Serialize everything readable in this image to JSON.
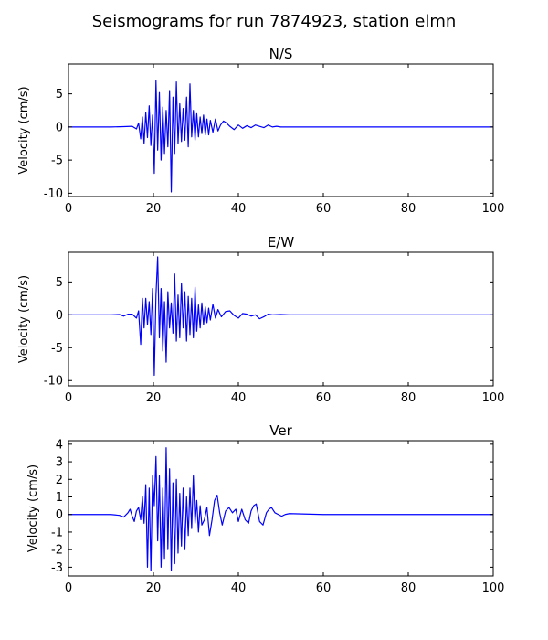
{
  "figure": {
    "title": "Seismograms for run 7874923, station elmn"
  },
  "colors": {
    "trace": "#0000ff",
    "axes": "#000000",
    "background": "#ffffff"
  },
  "chart_data": [
    {
      "type": "line",
      "title": "N/S",
      "xlabel": "",
      "ylabel": "Velocity (cm/s)",
      "xlim": [
        0,
        100
      ],
      "ylim": [
        -10.5,
        9.5
      ],
      "xticks": [
        0,
        20,
        40,
        60,
        80,
        100
      ],
      "yticks": [
        -10,
        -5,
        0,
        5
      ],
      "grid": false,
      "series": [
        {
          "color": "#0000ff",
          "points": [
            [
              0,
              0
            ],
            [
              10,
              0
            ],
            [
              13,
              0.05
            ],
            [
              15,
              0.1
            ],
            [
              16,
              -0.3
            ],
            [
              16.5,
              0.6
            ],
            [
              17,
              -1.8
            ],
            [
              17.4,
              1.5
            ],
            [
              17.8,
              -2.5
            ],
            [
              18.2,
              2.2
            ],
            [
              18.6,
              -1.6
            ],
            [
              19,
              3.2
            ],
            [
              19.4,
              -2.8
            ],
            [
              19.8,
              1.8
            ],
            [
              20.2,
              -7.0
            ],
            [
              20.6,
              7.0
            ],
            [
              21,
              -3.5
            ],
            [
              21.4,
              5.2
            ],
            [
              21.8,
              -5.0
            ],
            [
              22.2,
              3.0
            ],
            [
              22.6,
              -4.0
            ],
            [
              23,
              2.5
            ],
            [
              23.4,
              -3.0
            ],
            [
              23.8,
              5.5
            ],
            [
              24.2,
              -9.8
            ],
            [
              24.6,
              4.5
            ],
            [
              25,
              -4.0
            ],
            [
              25.4,
              6.8
            ],
            [
              25.8,
              -2.5
            ],
            [
              26.2,
              3.5
            ],
            [
              26.6,
              -2.2
            ],
            [
              27,
              2.8
            ],
            [
              27.4,
              -2.0
            ],
            [
              27.8,
              4.5
            ],
            [
              28.2,
              -3.0
            ],
            [
              28.6,
              6.5
            ],
            [
              29,
              -1.5
            ],
            [
              29.4,
              2.5
            ],
            [
              29.8,
              -2.0
            ],
            [
              30.2,
              2.0
            ],
            [
              30.6,
              -1.5
            ],
            [
              31,
              1.5
            ],
            [
              31.4,
              -1.0
            ],
            [
              31.8,
              1.8
            ],
            [
              32.2,
              -1.2
            ],
            [
              32.6,
              1.2
            ],
            [
              33,
              -1.2
            ],
            [
              33.4,
              1.0
            ],
            [
              34,
              -0.8
            ],
            [
              34.6,
              1.2
            ],
            [
              35.2,
              -0.6
            ],
            [
              35.8,
              0.3
            ],
            [
              36.5,
              0.9
            ],
            [
              37.2,
              0.6
            ],
            [
              38,
              0.1
            ],
            [
              39,
              -0.4
            ],
            [
              40,
              0.3
            ],
            [
              41,
              -0.2
            ],
            [
              42,
              0.2
            ],
            [
              43,
              -0.1
            ],
            [
              44,
              0.3
            ],
            [
              45,
              0.1
            ],
            [
              46,
              -0.1
            ],
            [
              47,
              0.3
            ],
            [
              48,
              0
            ],
            [
              49,
              0.1
            ],
            [
              50,
              0
            ],
            [
              52,
              0
            ],
            [
              60,
              0
            ],
            [
              80,
              0
            ],
            [
              100,
              0
            ]
          ]
        }
      ]
    },
    {
      "type": "line",
      "title": "E/W",
      "xlabel": "",
      "ylabel": "Velocity (cm/s)",
      "xlim": [
        0,
        100
      ],
      "ylim": [
        -10.8,
        9.5
      ],
      "xticks": [
        0,
        20,
        40,
        60,
        80,
        100
      ],
      "yticks": [
        -10,
        -5,
        0,
        5
      ],
      "grid": false,
      "series": [
        {
          "color": "#0000ff",
          "points": [
            [
              0,
              0
            ],
            [
              10,
              0
            ],
            [
              12,
              0.05
            ],
            [
              13,
              -0.2
            ],
            [
              14,
              0.1
            ],
            [
              15,
              0.1
            ],
            [
              16,
              -0.5
            ],
            [
              16.5,
              0.6
            ],
            [
              17,
              -4.5
            ],
            [
              17.4,
              2.5
            ],
            [
              17.8,
              -2.0
            ],
            [
              18.2,
              2.5
            ],
            [
              18.6,
              -1.5
            ],
            [
              19,
              2.0
            ],
            [
              19.4,
              -3.0
            ],
            [
              19.8,
              4.0
            ],
            [
              20.2,
              -9.2
            ],
            [
              20.6,
              3.0
            ],
            [
              21,
              8.8
            ],
            [
              21.4,
              -3.5
            ],
            [
              21.8,
              4.0
            ],
            [
              22.2,
              -5.5
            ],
            [
              22.6,
              2.0
            ],
            [
              23,
              -7.2
            ],
            [
              23.4,
              3.5
            ],
            [
              23.8,
              -2.0
            ],
            [
              24.2,
              1.8
            ],
            [
              24.6,
              -2.8
            ],
            [
              25,
              6.2
            ],
            [
              25.4,
              -4.0
            ],
            [
              25.8,
              3.0
            ],
            [
              26.2,
              -3.5
            ],
            [
              26.6,
              4.8
            ],
            [
              27,
              -2.0
            ],
            [
              27.4,
              3.5
            ],
            [
              27.8,
              -4.0
            ],
            [
              28.2,
              2.8
            ],
            [
              28.6,
              -3.0
            ],
            [
              29,
              2.5
            ],
            [
              29.4,
              -3.5
            ],
            [
              29.8,
              4.2
            ],
            [
              30.2,
              -2.5
            ],
            [
              30.6,
              1.5
            ],
            [
              31,
              -2.0
            ],
            [
              31.4,
              1.8
            ],
            [
              31.8,
              -1.5
            ],
            [
              32.2,
              1.2
            ],
            [
              32.6,
              -1.2
            ],
            [
              33,
              1.0
            ],
            [
              33.4,
              -0.8
            ],
            [
              34,
              1.6
            ],
            [
              34.6,
              -0.5
            ],
            [
              35.2,
              0.8
            ],
            [
              36,
              -0.3
            ],
            [
              37,
              0.5
            ],
            [
              38,
              0.6
            ],
            [
              39,
              -0.1
            ],
            [
              40,
              -0.5
            ],
            [
              41,
              0.2
            ],
            [
              42,
              0.1
            ],
            [
              43,
              -0.2
            ],
            [
              44,
              0
            ],
            [
              45,
              -0.6
            ],
            [
              46,
              -0.3
            ],
            [
              47,
              0.1
            ],
            [
              48,
              0
            ],
            [
              50,
              0.05
            ],
            [
              52,
              0
            ],
            [
              60,
              0
            ],
            [
              80,
              0
            ],
            [
              100,
              0
            ]
          ]
        }
      ]
    },
    {
      "type": "line",
      "title": "Ver",
      "xlabel": "",
      "ylabel": "Velocity (cm/s)",
      "xlim": [
        0,
        100
      ],
      "ylim": [
        -3.5,
        4.2
      ],
      "xticks": [
        0,
        20,
        40,
        60,
        80,
        100
      ],
      "yticks": [
        -3,
        -2,
        -1,
        0,
        1,
        2,
        3,
        4
      ],
      "grid": false,
      "series": [
        {
          "color": "#0000ff",
          "points": [
            [
              0,
              0
            ],
            [
              10,
              0
            ],
            [
              12,
              -0.05
            ],
            [
              13,
              -0.15
            ],
            [
              14,
              0.1
            ],
            [
              14.5,
              0.3
            ],
            [
              15,
              -0.1
            ],
            [
              15.5,
              -0.4
            ],
            [
              16,
              0.2
            ],
            [
              16.5,
              0.4
            ],
            [
              17,
              -0.3
            ],
            [
              17.4,
              1.0
            ],
            [
              17.8,
              -0.5
            ],
            [
              18.2,
              1.7
            ],
            [
              18.6,
              -3.0
            ],
            [
              19,
              1.5
            ],
            [
              19.4,
              -3.2
            ],
            [
              19.8,
              2.2
            ],
            [
              20.2,
              0.5
            ],
            [
              20.6,
              3.3
            ],
            [
              21,
              -1.5
            ],
            [
              21.4,
              2.2
            ],
            [
              21.8,
              -3.0
            ],
            [
              22.2,
              1.5
            ],
            [
              22.6,
              -2.5
            ],
            [
              23,
              3.8
            ],
            [
              23.4,
              -2.0
            ],
            [
              23.8,
              2.6
            ],
            [
              24.2,
              -3.2
            ],
            [
              24.6,
              1.8
            ],
            [
              25,
              -2.8
            ],
            [
              25.4,
              2.0
            ],
            [
              25.8,
              -2.2
            ],
            [
              26.2,
              1.2
            ],
            [
              26.6,
              -1.8
            ],
            [
              27,
              1.5
            ],
            [
              27.4,
              -2.0
            ],
            [
              27.8,
              1.0
            ],
            [
              28.2,
              -1.2
            ],
            [
              28.6,
              1.5
            ],
            [
              29,
              -0.8
            ],
            [
              29.4,
              2.2
            ],
            [
              29.8,
              -0.5
            ],
            [
              30.2,
              0.8
            ],
            [
              30.6,
              -1.0
            ],
            [
              31,
              0.5
            ],
            [
              31.4,
              -0.6
            ],
            [
              32,
              -0.3
            ],
            [
              32.6,
              0.4
            ],
            [
              33.2,
              -1.2
            ],
            [
              33.8,
              -0.3
            ],
            [
              34.4,
              0.8
            ],
            [
              35,
              1.1
            ],
            [
              35.6,
              0.1
            ],
            [
              36.2,
              -0.6
            ],
            [
              37,
              0.2
            ],
            [
              37.8,
              0.4
            ],
            [
              38.6,
              0.1
            ],
            [
              39.4,
              0.3
            ],
            [
              40,
              -0.4
            ],
            [
              40.8,
              0.3
            ],
            [
              41.6,
              -0.3
            ],
            [
              42.4,
              -0.5
            ],
            [
              43,
              0.2
            ],
            [
              43.6,
              0.5
            ],
            [
              44.2,
              0.6
            ],
            [
              45,
              -0.4
            ],
            [
              45.8,
              -0.6
            ],
            [
              46.6,
              0.1
            ],
            [
              47.2,
              0.3
            ],
            [
              47.8,
              0.4
            ],
            [
              48.6,
              0.1
            ],
            [
              49.4,
              0
            ],
            [
              50.2,
              -0.1
            ],
            [
              51,
              0
            ],
            [
              52,
              0.05
            ],
            [
              60,
              0
            ],
            [
              80,
              0
            ],
            [
              100,
              0
            ]
          ]
        }
      ]
    }
  ]
}
